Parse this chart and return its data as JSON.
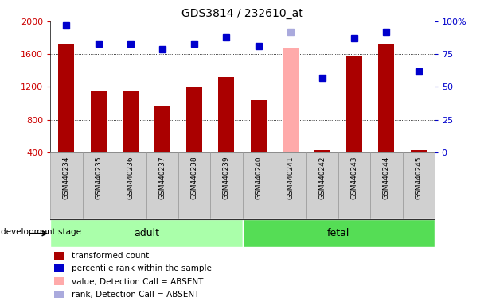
{
  "title": "GDS3814 / 232610_at",
  "samples": [
    "GSM440234",
    "GSM440235",
    "GSM440236",
    "GSM440237",
    "GSM440238",
    "GSM440239",
    "GSM440240",
    "GSM440241",
    "GSM440242",
    "GSM440243",
    "GSM440244",
    "GSM440245"
  ],
  "bar_values": [
    1730,
    1160,
    1160,
    960,
    1190,
    1320,
    1040,
    1680,
    430,
    1570,
    1730,
    430
  ],
  "bar_colors": [
    "#aa0000",
    "#aa0000",
    "#aa0000",
    "#aa0000",
    "#aa0000",
    "#aa0000",
    "#aa0000",
    "#ffaaaa",
    "#aa0000",
    "#aa0000",
    "#aa0000",
    "#aa0000"
  ],
  "rank_values": [
    97,
    83,
    83,
    79,
    83,
    88,
    81,
    92,
    57,
    87,
    92,
    62
  ],
  "rank_colors": [
    "#0000cc",
    "#0000cc",
    "#0000cc",
    "#0000cc",
    "#0000cc",
    "#0000cc",
    "#0000cc",
    "#aaaadd",
    "#0000cc",
    "#0000cc",
    "#0000cc",
    "#0000cc"
  ],
  "groups": [
    {
      "label": "adult",
      "start": 0,
      "end": 5,
      "color": "#aaffaa"
    },
    {
      "label": "fetal",
      "start": 6,
      "end": 11,
      "color": "#55dd55"
    }
  ],
  "ylim_left": [
    400,
    2000
  ],
  "ylim_right": [
    0,
    100
  ],
  "yticks_left": [
    400,
    800,
    1200,
    1600,
    2000
  ],
  "yticks_right": [
    0,
    25,
    50,
    75,
    100
  ],
  "left_color": "#cc0000",
  "right_color": "#0000cc",
  "grid_color": "#000000",
  "bar_width": 0.5,
  "marker_size": 6,
  "legend_items": [
    {
      "label": "transformed count",
      "color": "#aa0000"
    },
    {
      "label": "percentile rank within the sample",
      "color": "#0000cc"
    },
    {
      "label": "value, Detection Call = ABSENT",
      "color": "#ffaaaa"
    },
    {
      "label": "rank, Detection Call = ABSENT",
      "color": "#aaaadd"
    }
  ]
}
